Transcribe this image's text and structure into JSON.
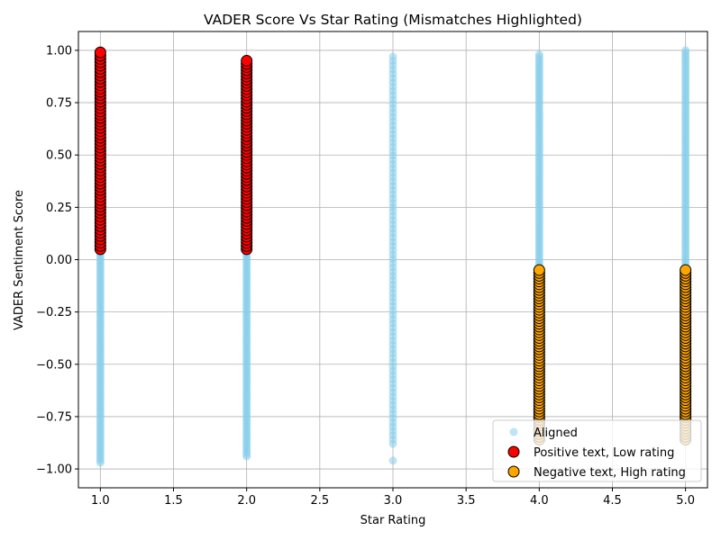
{
  "chart_data": {
    "type": "scatter",
    "title": "VADER Score Vs Star Rating (Mismatches Highlighted)",
    "xlabel": "Star Rating",
    "ylabel": "VADER Sentiment Score",
    "xlim": [
      0.85,
      5.15
    ],
    "ylim": [
      -1.09,
      1.09
    ],
    "x_ticks": [
      1.0,
      1.5,
      2.0,
      2.5,
      3.0,
      3.5,
      4.0,
      4.5,
      5.0
    ],
    "x_tick_labels": [
      "1.0",
      "1.5",
      "2.0",
      "2.5",
      "3.0",
      "3.5",
      "4.0",
      "4.5",
      "5.0"
    ],
    "y_ticks": [
      -1.0,
      -0.75,
      -0.5,
      -0.25,
      0.0,
      0.25,
      0.5,
      0.75,
      1.0
    ],
    "y_tick_labels": [
      "−1.00",
      "−0.75",
      "−0.50",
      "−0.25",
      "0.00",
      "0.25",
      "0.50",
      "0.75",
      "1.00"
    ],
    "grid": true,
    "legend_position": "lower-right",
    "series": [
      {
        "name": "Aligned",
        "color": "#87CEEB",
        "alpha": 0.55,
        "marker": "circle-small",
        "ranges": [
          {
            "x": 1,
            "y_min": -0.97,
            "y_max": 0.05
          },
          {
            "x": 2,
            "y_min": -0.94,
            "y_max": 0.05
          },
          {
            "x": 3,
            "y_min": -0.88,
            "y_max": 0.97,
            "extra_points": [
              -0.96
            ]
          },
          {
            "x": 4,
            "y_min": -0.05,
            "y_max": 0.98
          },
          {
            "x": 5,
            "y_min": -0.05,
            "y_max": 1.0
          }
        ]
      },
      {
        "name": "Positive text, Low rating",
        "color": "#ff0000",
        "edge": "#000000",
        "marker": "circle-large",
        "ranges": [
          {
            "x": 1,
            "y_min": 0.05,
            "y_max": 0.99
          },
          {
            "x": 2,
            "y_min": 0.05,
            "y_max": 0.95
          }
        ]
      },
      {
        "name": "Negative text, High rating",
        "color": "#FFA500",
        "edge": "#000000",
        "marker": "circle-large",
        "ranges": [
          {
            "x": 4,
            "y_min": -0.86,
            "y_max": -0.05
          },
          {
            "x": 5,
            "y_min": -0.86,
            "y_max": -0.05
          }
        ]
      }
    ]
  }
}
